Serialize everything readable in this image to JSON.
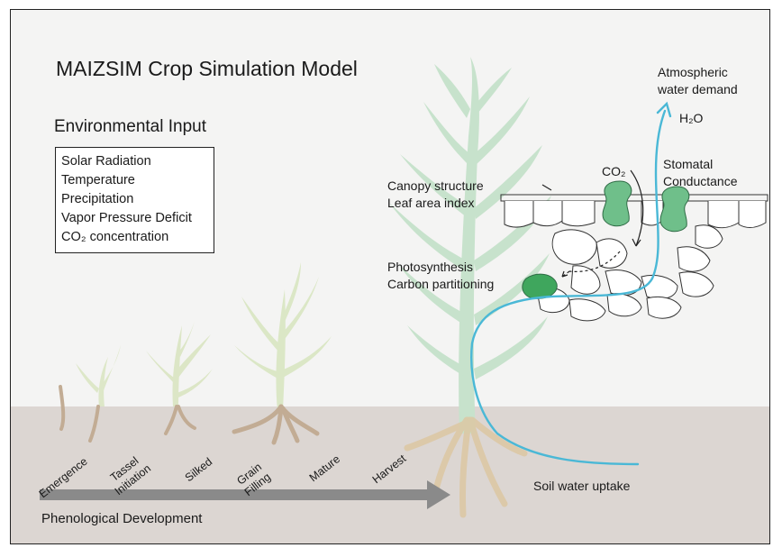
{
  "title": "MAIZSIM Crop Simulation Model",
  "environmental_input": {
    "heading": "Environmental Input",
    "items": [
      "Solar Radiation",
      "Temperature",
      "Precipitation",
      "Vapor Pressure Deficit",
      "CO₂ concentration"
    ]
  },
  "labels": {
    "canopy_1": "Canopy structure",
    "canopy_2": "Leaf area index",
    "photo_1": "Photosynthesis",
    "photo_2": "Carbon partitioning",
    "co2": "CO₂",
    "stomatal_1": "Stomatal",
    "stomatal_2": "Conductance",
    "atmos_1": "Atmospheric",
    "atmos_2": "water demand",
    "h2o": "H₂O",
    "soil_water": "Soil water uptake"
  },
  "stages": [
    [
      "Emergence"
    ],
    [
      "Tassel",
      "Initiation"
    ],
    [
      "Silked"
    ],
    [
      "Grain",
      "Filling"
    ],
    [
      "Mature"
    ],
    [
      "Harvest"
    ]
  ],
  "phenological_label": "Phenological Development",
  "colors": {
    "plant": "#c9e3cd",
    "seedling": "#dfe8c9",
    "root": "#c9ad8a",
    "soil": "#dcd6d2",
    "water": "#4ab8d6",
    "stomata": "#6fbf8a",
    "arrow": "#8a8a8a"
  }
}
